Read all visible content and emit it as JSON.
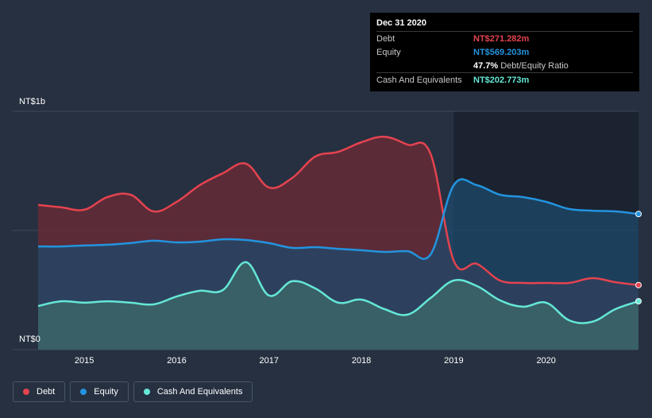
{
  "chart_data": {
    "type": "area",
    "y_axis": {
      "top_label": "NT$1b",
      "bottom_label": "NT$0",
      "ylim": [
        0,
        1000
      ]
    },
    "x_axis": {
      "range": [
        2014.5,
        2021.0
      ],
      "tick_labels": [
        "2015",
        "2016",
        "2017",
        "2018",
        "2019",
        "2020"
      ],
      "ticks": [
        2015,
        2016,
        2017,
        2018,
        2019,
        2020
      ]
    },
    "forecast_region_start": 2019.0,
    "series": [
      {
        "name": "Debt",
        "color": "#e4434f",
        "fill": "#6e2a35",
        "points": [
          [
            2014.5,
            607
          ],
          [
            2014.75,
            597
          ],
          [
            2015.0,
            587
          ],
          [
            2015.25,
            640
          ],
          [
            2015.5,
            650
          ],
          [
            2015.75,
            580
          ],
          [
            2016.0,
            620
          ],
          [
            2016.25,
            690
          ],
          [
            2016.5,
            740
          ],
          [
            2016.75,
            780
          ],
          [
            2017.0,
            680
          ],
          [
            2017.25,
            720
          ],
          [
            2017.5,
            810
          ],
          [
            2017.75,
            830
          ],
          [
            2018.0,
            870
          ],
          [
            2018.25,
            893
          ],
          [
            2018.5,
            860
          ],
          [
            2018.75,
            820
          ],
          [
            2019.0,
            373
          ],
          [
            2019.25,
            360
          ],
          [
            2019.5,
            290
          ],
          [
            2019.75,
            280
          ],
          [
            2020.0,
            280
          ],
          [
            2020.25,
            280
          ],
          [
            2020.5,
            300
          ],
          [
            2020.75,
            283
          ],
          [
            2021.0,
            271
          ]
        ]
      },
      {
        "name": "Equity",
        "color": "#2394df",
        "fill": "#1e4a6b",
        "points": [
          [
            2014.5,
            433
          ],
          [
            2014.75,
            433
          ],
          [
            2015.0,
            437
          ],
          [
            2015.25,
            440
          ],
          [
            2015.5,
            447
          ],
          [
            2015.75,
            457
          ],
          [
            2016.0,
            450
          ],
          [
            2016.25,
            453
          ],
          [
            2016.5,
            463
          ],
          [
            2016.75,
            460
          ],
          [
            2017.0,
            447
          ],
          [
            2017.25,
            427
          ],
          [
            2017.5,
            430
          ],
          [
            2017.75,
            423
          ],
          [
            2018.0,
            417
          ],
          [
            2018.25,
            410
          ],
          [
            2018.5,
            413
          ],
          [
            2018.75,
            400
          ],
          [
            2019.0,
            690
          ],
          [
            2019.25,
            690
          ],
          [
            2019.5,
            650
          ],
          [
            2019.75,
            640
          ],
          [
            2020.0,
            620
          ],
          [
            2020.25,
            590
          ],
          [
            2020.5,
            583
          ],
          [
            2020.75,
            580
          ],
          [
            2021.0,
            569
          ]
        ]
      },
      {
        "name": "Cash And Equivalents",
        "color": "#65e7d6",
        "fill": "#3d6a6b",
        "points": [
          [
            2014.5,
            183
          ],
          [
            2014.75,
            203
          ],
          [
            2015.0,
            197
          ],
          [
            2015.25,
            203
          ],
          [
            2015.5,
            197
          ],
          [
            2015.75,
            190
          ],
          [
            2016.0,
            223
          ],
          [
            2016.25,
            247
          ],
          [
            2016.5,
            250
          ],
          [
            2016.75,
            367
          ],
          [
            2017.0,
            227
          ],
          [
            2017.25,
            287
          ],
          [
            2017.5,
            257
          ],
          [
            2017.75,
            197
          ],
          [
            2018.0,
            210
          ],
          [
            2018.25,
            170
          ],
          [
            2018.5,
            147
          ],
          [
            2018.75,
            217
          ],
          [
            2019.0,
            290
          ],
          [
            2019.25,
            267
          ],
          [
            2019.5,
            207
          ],
          [
            2019.75,
            180
          ],
          [
            2020.0,
            197
          ],
          [
            2020.25,
            123
          ],
          [
            2020.5,
            117
          ],
          [
            2020.75,
            170
          ],
          [
            2021.0,
            203
          ]
        ]
      }
    ]
  },
  "tooltip": {
    "date": "Dec 31 2020",
    "rows": [
      {
        "label": "Debt",
        "value": "NT$271.282m",
        "color": "#e4434f"
      },
      {
        "label": "Equity",
        "value": "NT$569.203m",
        "color": "#2394df"
      },
      {
        "label": "",
        "value": "47.7%",
        "sub": "Debt/Equity Ratio",
        "color": "#ffffff"
      },
      {
        "label": "Cash And Equivalents",
        "value": "NT$202.773m",
        "color": "#65e7d6"
      }
    ]
  },
  "legend": [
    {
      "label": "Debt",
      "color": "#e4434f"
    },
    {
      "label": "Equity",
      "color": "#2394df"
    },
    {
      "label": "Cash And Equivalents",
      "color": "#65e7d6"
    }
  ]
}
